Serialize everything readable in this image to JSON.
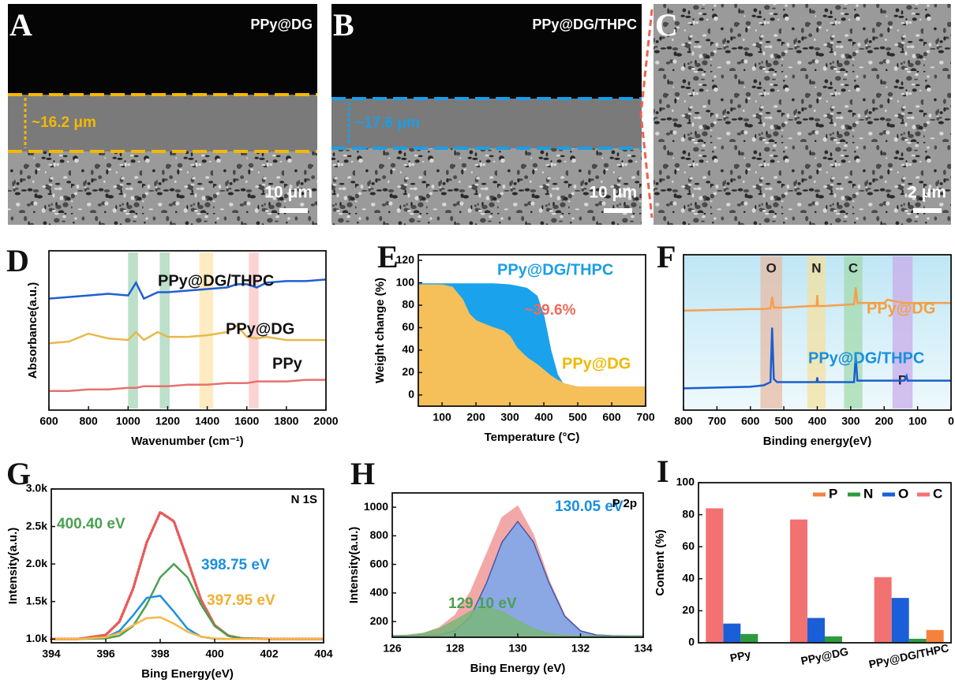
{
  "images": [
    {
      "label": "A",
      "title": "PPy@DG",
      "thickness": "~16.2 μm",
      "scale_bar": "10 μm"
    },
    {
      "label": "B",
      "title": "PPy@DG/THPC",
      "thickness": "~17.6 μm",
      "scale_bar": "10 μm"
    },
    {
      "label": "C",
      "scale_bar": "2 μm"
    }
  ],
  "chart_data": [
    {
      "type": "line",
      "label": "D",
      "xlabel": "Wavenumber (cm⁻¹)",
      "ylabel": "Absorbance(a.u.)",
      "x": [
        600,
        700,
        800,
        900,
        1000,
        1040,
        1080,
        1150,
        1200,
        1300,
        1400,
        1500,
        1550,
        1600,
        1650,
        1700,
        1800,
        1900,
        2000
      ],
      "xlim": [
        600,
        2000
      ],
      "xticks": [
        600,
        800,
        1000,
        1200,
        1400,
        1600,
        1800,
        2000
      ],
      "ylim": [
        0,
        10
      ],
      "bands": [
        {
          "range": [
            1000,
            1050
          ],
          "color": "#9fd3b4"
        },
        {
          "range": [
            1160,
            1210
          ],
          "color": "#9fd3b4"
        },
        {
          "range": [
            1360,
            1430
          ],
          "color": "#fde3a6"
        },
        {
          "range": [
            1610,
            1660
          ],
          "color": "#fbc1c1"
        }
      ],
      "series": [
        {
          "name": "PPy@DG/THPC",
          "color": "#1f5fd1",
          "values": [
            7.0,
            7.1,
            7.2,
            7.3,
            7.2,
            8.0,
            7.0,
            7.4,
            7.4,
            7.5,
            7.6,
            7.7,
            7.9,
            7.9,
            7.7,
            8.0,
            8.1,
            8.1,
            8.2
          ]
        },
        {
          "name": "PPy@DG",
          "color": "#e8b84a",
          "values": [
            4.2,
            4.3,
            4.8,
            4.5,
            4.4,
            4.9,
            4.4,
            4.9,
            4.6,
            4.6,
            4.7,
            4.9,
            5.3,
            4.6,
            4.5,
            4.6,
            4.4,
            4.4,
            4.4
          ]
        },
        {
          "name": "PPy",
          "color": "#e87070",
          "values": [
            1.2,
            1.2,
            1.3,
            1.3,
            1.4,
            1.4,
            1.5,
            1.5,
            1.5,
            1.6,
            1.6,
            1.7,
            1.7,
            1.7,
            1.8,
            1.8,
            1.8,
            1.9,
            1.9
          ]
        }
      ]
    },
    {
      "type": "area",
      "label": "E",
      "xlabel": "Temperature (°C)",
      "ylabel": "Weight change (%)",
      "x": [
        30,
        100,
        130,
        160,
        180,
        200,
        250,
        280,
        300,
        320,
        350,
        380,
        400,
        420,
        440,
        460,
        500,
        700
      ],
      "xlim": [
        30,
        700
      ],
      "xticks": [
        100,
        200,
        300,
        400,
        500,
        600,
        700
      ],
      "ylim": [
        -10,
        125
      ],
      "yticks": [
        0,
        20,
        40,
        60,
        80,
        100,
        120
      ],
      "annotation": "~39.6%",
      "series": [
        {
          "name": "PPy@DG/THPC",
          "color": "#1aa3ec",
          "values": [
            99,
            99,
            99,
            99,
            99,
            99,
            99,
            98.5,
            98,
            97,
            95,
            88,
            70,
            40,
            18,
            8,
            7,
            6
          ]
        },
        {
          "name": "PPy@DG",
          "color": "#f5bf5a",
          "values": [
            98,
            98,
            96,
            85,
            72,
            66,
            60,
            57,
            52,
            42,
            33,
            27,
            22,
            17,
            13,
            10,
            7,
            7
          ]
        }
      ]
    },
    {
      "type": "line",
      "label": "F",
      "xlabel": "Binding energy(eV)",
      "x": [
        800,
        700,
        600,
        560,
        540,
        535,
        530,
        520,
        500,
        420,
        402,
        400,
        398,
        380,
        300,
        290,
        285,
        280,
        270,
        200,
        190,
        140,
        133,
        130,
        100,
        0
      ],
      "xlim": [
        800,
        0
      ],
      "xticks": [
        800,
        700,
        600,
        500,
        400,
        300,
        200,
        100,
        0
      ],
      "ylim": [
        0,
        10
      ],
      "bands": [
        {
          "range": [
            505,
            570
          ],
          "color": "#e8b8a0",
          "label": "O"
        },
        {
          "range": [
            375,
            430
          ],
          "color": "#f5e09a",
          "label": "N"
        },
        {
          "range": [
            265,
            320
          ],
          "color": "#9fd8a8",
          "label": "C"
        },
        {
          "range": [
            115,
            175
          ],
          "color": "#c8a8e8",
          "label": "P"
        }
      ],
      "series": [
        {
          "name": "PPy@DG",
          "color": "#f4a050",
          "values": [
            6.4,
            6.45,
            6.5,
            6.5,
            6.55,
            7.3,
            6.6,
            6.6,
            6.6,
            6.7,
            6.7,
            7.4,
            6.7,
            6.7,
            6.8,
            6.8,
            7.9,
            6.9,
            6.9,
            6.9,
            7.1,
            6.9,
            6.9,
            6.9,
            6.9,
            6.9
          ]
        },
        {
          "name": "PPy@DG/THPC",
          "color": "#1a5fd0",
          "values": [
            1.4,
            1.45,
            1.5,
            1.6,
            1.8,
            5.3,
            2.0,
            1.8,
            1.8,
            1.8,
            1.8,
            2.1,
            1.8,
            1.8,
            1.8,
            1.8,
            3.5,
            1.9,
            1.9,
            1.9,
            1.9,
            1.9,
            2.2,
            1.9,
            1.9,
            1.9
          ]
        }
      ]
    },
    {
      "type": "line",
      "label": "G",
      "title": "N 1S",
      "xlabel": "Bing Energy(eV)",
      "ylabel": "Intensity(a.u.)",
      "x": [
        394,
        395,
        396,
        396.5,
        397,
        397.5,
        398,
        398.5,
        399,
        399.5,
        400,
        400.5,
        401,
        402,
        403,
        404
      ],
      "xlim": [
        394,
        404
      ],
      "xticks": [
        394,
        396,
        398,
        400,
        402,
        404
      ],
      "ylim": [
        950,
        3000
      ],
      "yticks": [
        {
          "value": 1000,
          "label": "1.0k"
        },
        {
          "value": 1500,
          "label": "1.5k"
        },
        {
          "value": 2000,
          "label": "2.0k"
        },
        {
          "value": 2500,
          "label": "2.5k"
        },
        {
          "value": 3000,
          "label": "3.0k"
        }
      ],
      "series": [
        {
          "color": "#e85a5a",
          "marker": "dot",
          "values": [
            1000,
            1000,
            1054,
            1232,
            1667,
            2284,
            2691,
            2569,
            2058,
            1520,
            1184,
            1044,
            1008,
            1000,
            1000,
            1000
          ]
        },
        {
          "name": "400.40 eV",
          "color": "#4aa050",
          "values": [
            1000,
            1000,
            1008,
            1044,
            1172,
            1458,
            1823,
            2000,
            1823,
            1458,
            1172,
            1044,
            1008,
            1000,
            1000,
            1000
          ]
        },
        {
          "name": "398.75 eV",
          "color": "#1a90e0",
          "values": [
            1000,
            1000,
            1022,
            1108,
            1313,
            1547,
            1577,
            1364,
            1138,
            1031,
            1004,
            1000,
            1000,
            1000,
            1000,
            1000
          ]
        },
        {
          "name": "397.95 eV",
          "color": "#f5b942",
          "values": [
            1000,
            1000,
            1024,
            1080,
            1182,
            1279,
            1291,
            1205,
            1097,
            1031,
            1008,
            1000,
            1000,
            1000,
            1000,
            1000
          ]
        }
      ]
    },
    {
      "type": "area",
      "label": "H",
      "title": "P 2p",
      "xlabel": "Bing Energy (eV)",
      "ylabel": "Intensity(a.u.)",
      "x": [
        126,
        126.5,
        127,
        127.5,
        128,
        128.5,
        129,
        129.5,
        130,
        130.5,
        131,
        131.5,
        132,
        132.5,
        133,
        133.5,
        134
      ],
      "xlim": [
        126,
        134
      ],
      "xticks": [
        126,
        128,
        130,
        132,
        134
      ],
      "ylim": [
        90,
        1100
      ],
      "yticks": [
        200,
        400,
        600,
        800,
        1000
      ],
      "series": [
        {
          "color": "#f29a9a",
          "values": [
            101,
            104,
            118,
            156,
            243,
            409,
            668,
            928,
            1008,
            806,
            485,
            241,
            135,
            106,
            101,
            100,
            100
          ]
        },
        {
          "name": "130.05 eV",
          "color": "#7aa8f0",
          "values": [
            100,
            100,
            101,
            106,
            135,
            237,
            468,
            756,
            900,
            756,
            468,
            237,
            135,
            106,
            101,
            100,
            100
          ]
        },
        {
          "name": "129.10 eV",
          "color": "#7ab87a",
          "values": [
            101,
            104,
            117,
            150,
            208,
            272,
            300,
            272,
            208,
            150,
            117,
            104,
            100,
            100,
            100,
            100,
            100
          ]
        }
      ]
    },
    {
      "type": "bar",
      "label": "I",
      "ylabel": "Content (%)",
      "legend": "upper right",
      "categories": [
        "PPy",
        "PPy@DG",
        "PPy@DG/THPC"
      ],
      "ylim": [
        0,
        100
      ],
      "yticks": [
        0,
        20,
        40,
        60,
        80,
        100
      ],
      "series": [
        {
          "name": "P",
          "color": "#f4823c",
          "values": [
            0,
            0,
            8
          ]
        },
        {
          "name": "N",
          "color": "#2e9a3e",
          "values": [
            5.5,
            4,
            2.5
          ]
        },
        {
          "name": "O",
          "color": "#1a5fd8",
          "values": [
            12,
            15.5,
            28
          ]
        },
        {
          "name": "C",
          "color": "#f27272",
          "values": [
            84,
            77,
            41
          ]
        }
      ]
    }
  ]
}
